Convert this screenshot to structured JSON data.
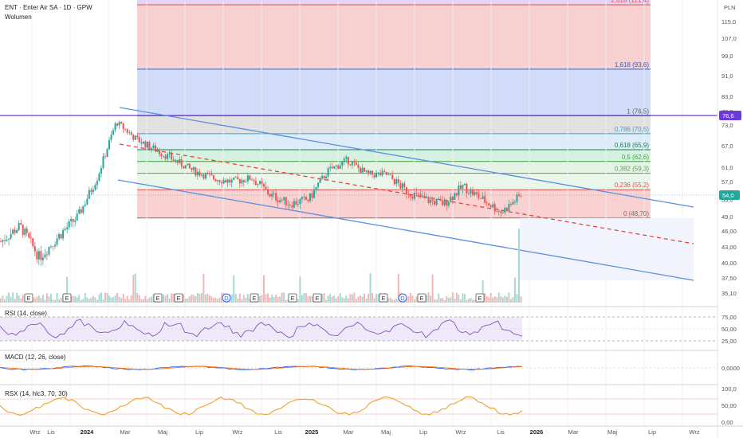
{
  "header": {
    "symbol_line": "ENT · Enter Air SA · 1D · GPW",
    "volume_label": "Wolumen",
    "currency": "PLN"
  },
  "price_axis": {
    "ticks": [
      "115,0",
      "107,0",
      "99,0",
      "91,0",
      "83,0",
      "78,0",
      "73,0",
      "67,0",
      "61,0",
      "57,0",
      "53,0",
      "49,0",
      "46,00",
      "43,00",
      "40,00",
      "37,50",
      "35,10"
    ],
    "last_price": "54,0",
    "level_label": "76,6"
  },
  "time_axis": [
    "Wrz",
    "Lis",
    "2024",
    "Mar",
    "Maj",
    "Lip",
    "Wrz",
    "Lis",
    "2025",
    "Mar",
    "Maj",
    "Lip",
    "Wrz",
    "Lis",
    "2026",
    "Mar",
    "Maj",
    "Lip",
    "Wrz"
  ],
  "fib_levels": [
    {
      "label": "2,618 (121,4)",
      "color": "#e05050"
    },
    {
      "label": "1,618 (93,6)",
      "color": "#3060c0"
    },
    {
      "label": "1 (76,5)",
      "color": "#606060"
    },
    {
      "label": "0,786 (70,5)",
      "color": "#40a0d0"
    },
    {
      "label": "0,618 (65,9)",
      "color": "#208050"
    },
    {
      "label": "0,5 (62,6)",
      "color": "#40a040"
    },
    {
      "label": "0,382 (59,3)",
      "color": "#60a060"
    },
    {
      "label": "0,236 (55,2)",
      "color": "#e05050"
    },
    {
      "label": "0 (48,70)",
      "color": "#707070"
    }
  ],
  "event_markers": [
    "E",
    "E",
    "E",
    "E",
    "D",
    "E",
    "E",
    "E",
    "E",
    "D",
    "E",
    "E"
  ],
  "rsi": {
    "title": "RSI (14, close)",
    "ticks": [
      "75,00",
      "50,00",
      "25,00"
    ]
  },
  "macd": {
    "title": "MACD (12, 26, close)",
    "ticks": [
      "0,0000"
    ]
  },
  "rsx": {
    "title": "RSX (14, hlc3, 70, 30)",
    "ticks": [
      "100,0",
      "50,00",
      "0,00"
    ]
  },
  "colors": {
    "up": "#26a69a",
    "down": "#ef5350",
    "channel": "#5b8fe0",
    "level_line": "#6a3bd8",
    "rsi_line": "#7e57c2",
    "macd_line": "#2962ff",
    "signal_line": "#ff6d00"
  },
  "chart_data": {
    "type": "line",
    "title": "ENT · Enter Air SA · 1D · GPW",
    "x": [
      "2023-09",
      "2023-10",
      "2023-11",
      "2023-12",
      "2024-01",
      "2024-02",
      "2024-03",
      "2024-04",
      "2024-05",
      "2024-06",
      "2024-07",
      "2024-08",
      "2024-09",
      "2024-10",
      "2024-11",
      "2024-12",
      "2025-01",
      "2025-02",
      "2025-03",
      "2025-04",
      "2025-05",
      "2025-06",
      "2025-07",
      "2025-08",
      "2025-09",
      "2025-10",
      "2025-11",
      "2025-12"
    ],
    "series": [
      {
        "values": [
          44,
          47,
          41,
          45,
          49,
          58,
          74,
          69,
          66,
          63,
          60,
          58,
          57,
          58,
          54,
          52,
          53,
          60,
          63,
          59,
          59,
          55,
          53,
          52,
          56,
          53,
          50,
          54
        ]
      }
    ],
    "ylim": [
      35.1,
      121.4
    ],
    "fib_retracement": {
      "levels": [
        2.618,
        1.618,
        1,
        0.786,
        0.618,
        0.5,
        0.382,
        0.236,
        0
      ],
      "prices": [
        121.4,
        93.6,
        76.5,
        70.5,
        65.9,
        62.6,
        59.3,
        55.2,
        48.7
      ]
    },
    "horizontal_level": 76.6,
    "last_price": 54.0
  }
}
